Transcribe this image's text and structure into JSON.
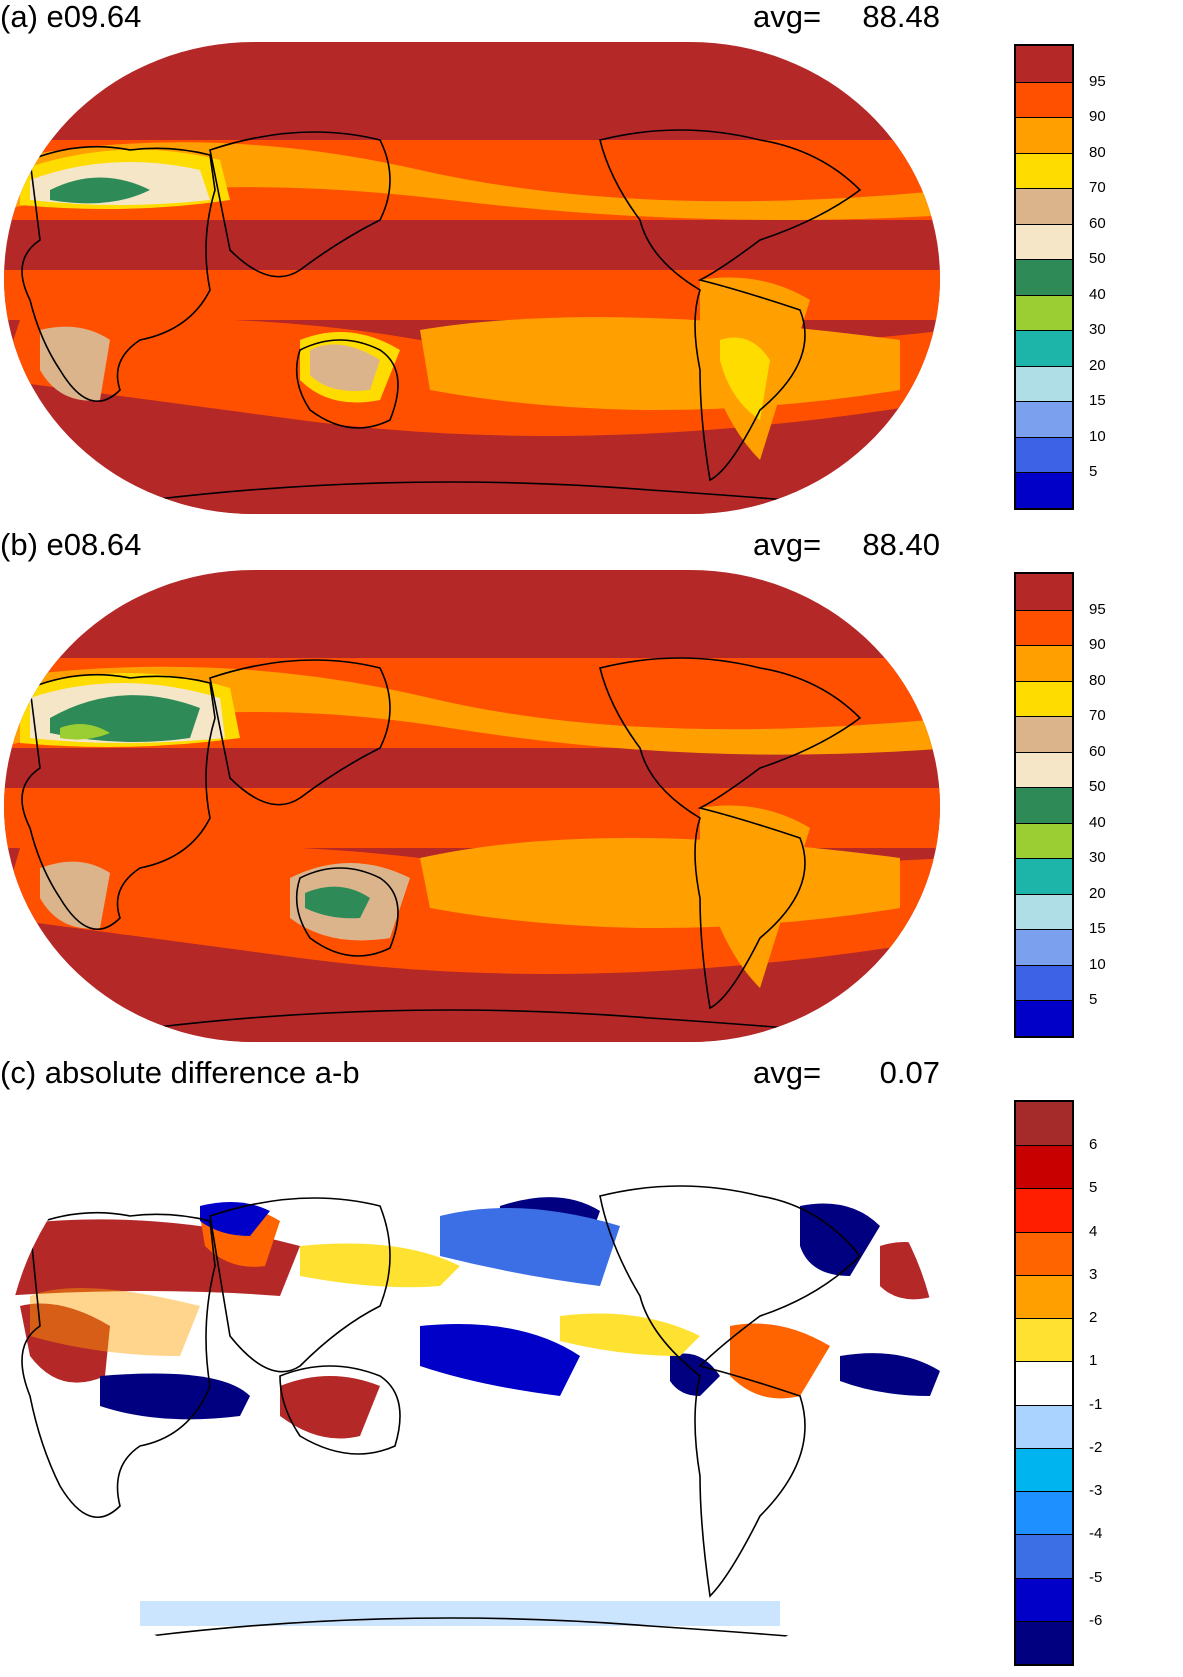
{
  "panels": [
    {
      "title": "(a) e09.64",
      "avg_label": "avg=",
      "avg_value": "88.48",
      "colorbar": {
        "colors": [
          "#0000c8",
          "#3d62e6",
          "#7aa0ee",
          "#b0dee6",
          "#1db4aa",
          "#9bce32",
          "#2e8b57",
          "#f5e6c8",
          "#dcb48c",
          "#ffdc00",
          "#ffa000",
          "#ff5000",
          "#b42828"
        ],
        "labels": [
          "5",
          "10",
          "15",
          "20",
          "30",
          "40",
          "50",
          "60",
          "70",
          "80",
          "90",
          "95"
        ]
      },
      "colors": {
        "land_outline": "#000000",
        "ocean_high": "#b42828",
        "tropics": "#ff5000",
        "subtropics": "#ffa000",
        "dry": "#ffdc00",
        "desert": "#dcb48c",
        "arid": "#f5e6c8",
        "green": "#2e8b57"
      }
    },
    {
      "title": "(b) e08.64",
      "avg_label": "avg=",
      "avg_value": "88.40",
      "colorbar": {
        "colors": [
          "#0000c8",
          "#3d62e6",
          "#7aa0ee",
          "#b0dee6",
          "#1db4aa",
          "#9bce32",
          "#2e8b57",
          "#f5e6c8",
          "#dcb48c",
          "#ffdc00",
          "#ffa000",
          "#ff5000",
          "#b42828"
        ],
        "labels": [
          "5",
          "10",
          "15",
          "20",
          "30",
          "40",
          "50",
          "60",
          "70",
          "80",
          "90",
          "95"
        ]
      }
    },
    {
      "title": "(c) absolute difference a-b",
      "avg_label": "avg=",
      "avg_value": "0.07",
      "colorbar": {
        "colors": [
          "#000080",
          "#0000c8",
          "#3c6ee6",
          "#1e90ff",
          "#00b4f0",
          "#aad4ff",
          "#ffffff",
          "#ffe132",
          "#ffa000",
          "#ff6400",
          "#ff1e00",
          "#c80000",
          "#a52a2a"
        ],
        "labels": [
          "-6",
          "-5",
          "-4",
          "-3",
          "-2",
          "-1",
          "1",
          "2",
          "3",
          "4",
          "5",
          "6"
        ]
      }
    }
  ]
}
